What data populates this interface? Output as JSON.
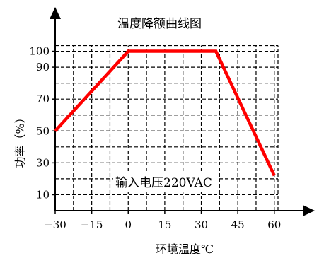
{
  "chart_data": {
    "type": "line",
    "title": "温度降额曲线图",
    "xlabel": "环境温度℃",
    "ylabel": "功率（%）",
    "annotation": "输入电压220VAC",
    "xlim": [
      -30,
      65
    ],
    "ylim": [
      0,
      110
    ],
    "x_ticks": [
      "−30",
      "−15",
      "0",
      "15",
      "30",
      "45",
      "60"
    ],
    "y_ticks": [
      "10",
      "30",
      "50",
      "70",
      "90",
      "100"
    ],
    "grid": true,
    "series": [
      {
        "points": [
          {
            "x": -30,
            "y": 50
          },
          {
            "x": 0,
            "y": 100
          },
          {
            "x": 36,
            "y": 100
          },
          {
            "x": 60,
            "y": 22
          }
        ],
        "color": "#ff0000"
      }
    ]
  }
}
